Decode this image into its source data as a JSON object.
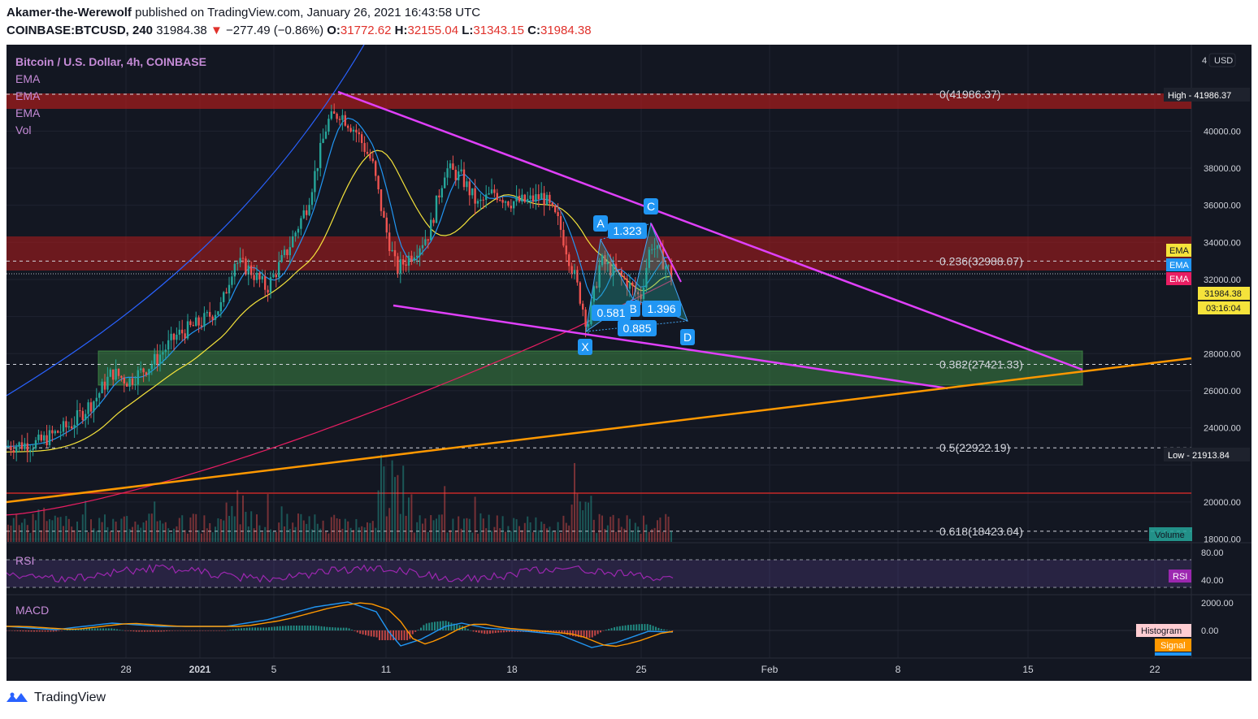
{
  "header": {
    "author": "Akamer-the-Werewolf",
    "published": "published on TradingView.com, January 26, 2021 16:43:58 UTC",
    "symbol": "COINBASE:BTCUSD, 240",
    "price": "31984.38",
    "change": "−277.49 (−0.86%)",
    "o_label": "O:",
    "o_value": "31772.62",
    "h_label": "H:",
    "h_value": "32155.04",
    "l_label": "L:",
    "l_value": "31343.15",
    "c_label": "C:",
    "c_value": "31984.38"
  },
  "legend": {
    "title": "Bitcoin / U.S. Dollar, 4h, COINBASE",
    "items": [
      "EMA",
      "EMA",
      "EMA",
      "Vol"
    ]
  },
  "price_axis": {
    "currency": "USD",
    "ticks": [
      "40000.00",
      "38000.00",
      "36000.00",
      "34000.00",
      "32000.00",
      "28000.00",
      "26000.00",
      "24000.00",
      "20000.00",
      "18000.00"
    ],
    "high_label": "High",
    "high_value": "41986.37",
    "low_label": "Low",
    "low_value": "21913.84",
    "ema_labels": [
      "EMA",
      "EMA",
      "EMA"
    ],
    "ema_colors": [
      "#f5e33b",
      "#2196f3",
      "#e91e63"
    ],
    "last_price": "31984.38",
    "countdown": "03:16:04",
    "volume_label": "Volume"
  },
  "fib": [
    {
      "label": "0(41986.37)",
      "price": 41986.37
    },
    {
      "label": "0.236(32988.07)",
      "price": 32988.07
    },
    {
      "label": "0.382(27421.33)",
      "price": 27421.33
    },
    {
      "label": "0.5(22922.19)",
      "price": 22922.19
    },
    {
      "label": "0.618(18423.04)",
      "price": 18423.04
    }
  ],
  "pattern": {
    "points": [
      "X",
      "A",
      "B",
      "C",
      "D"
    ],
    "ratios": [
      "1.323",
      "0.581",
      "1.396",
      "0.885"
    ]
  },
  "rsi": {
    "title": "RSI",
    "ticks": [
      "80.00",
      "40.00"
    ],
    "label": "RSI"
  },
  "macd": {
    "title": "MACD",
    "ticks": [
      "2000.00",
      "0.00"
    ],
    "histogram_label": "Histogram",
    "signal_label": "Signal"
  },
  "time_axis": {
    "ticks": [
      "28",
      "2021",
      "5",
      "11",
      "18",
      "25",
      "Feb",
      "8",
      "15",
      "22"
    ]
  },
  "branding": {
    "name": "TradingView"
  },
  "colors": {
    "background": "#131722",
    "up": "#26a69a",
    "down": "#ef5350",
    "trendline": "#e040fb",
    "support": "#ff9800",
    "ema_fast": "#2196f3",
    "ema_mid": "#f5e33b",
    "ema_slow": "#e91e63",
    "rsi": "#9c27b0",
    "macd_line": "#2196f3",
    "signal_line": "#ff9800"
  },
  "chart_data": {
    "type": "candlestick",
    "title": "Bitcoin / U.S. Dollar, 4h, COINBASE",
    "ylim": [
      17000,
      43500
    ],
    "price_series_approx": [
      {
        "x": "Dec 22",
        "close": 23000
      },
      {
        "x": "Dec 27",
        "close": 26800
      },
      {
        "x": "Jan 1",
        "close": 29300
      },
      {
        "x": "Jan 3",
        "close": 33000
      },
      {
        "x": "Jan 5",
        "close": 31900
      },
      {
        "x": "Jan 8",
        "close": 41000
      },
      {
        "x": "Jan 10",
        "close": 38300
      },
      {
        "x": "Jan 11",
        "close": 33500
      },
      {
        "x": "Jan 12",
        "close": 34000
      },
      {
        "x": "Jan 14",
        "close": 39000
      },
      {
        "x": "Jan 16",
        "close": 36500
      },
      {
        "x": "Jan 19",
        "close": 36500
      },
      {
        "x": "Jan 21",
        "close": 30500
      },
      {
        "x": "Jan 23",
        "close": 32300
      },
      {
        "x": "Jan 25",
        "close": 34000
      },
      {
        "x": "Jan 26",
        "close": 31984.38
      }
    ],
    "high": 41986.37,
    "low": 21913.84,
    "fib_levels": [
      41986.37,
      32988.07,
      27421.33,
      22922.19,
      18423.04
    ],
    "rsi_ylim": [
      20,
      100
    ],
    "macd_ylim": [
      -1200,
      2400
    ]
  }
}
